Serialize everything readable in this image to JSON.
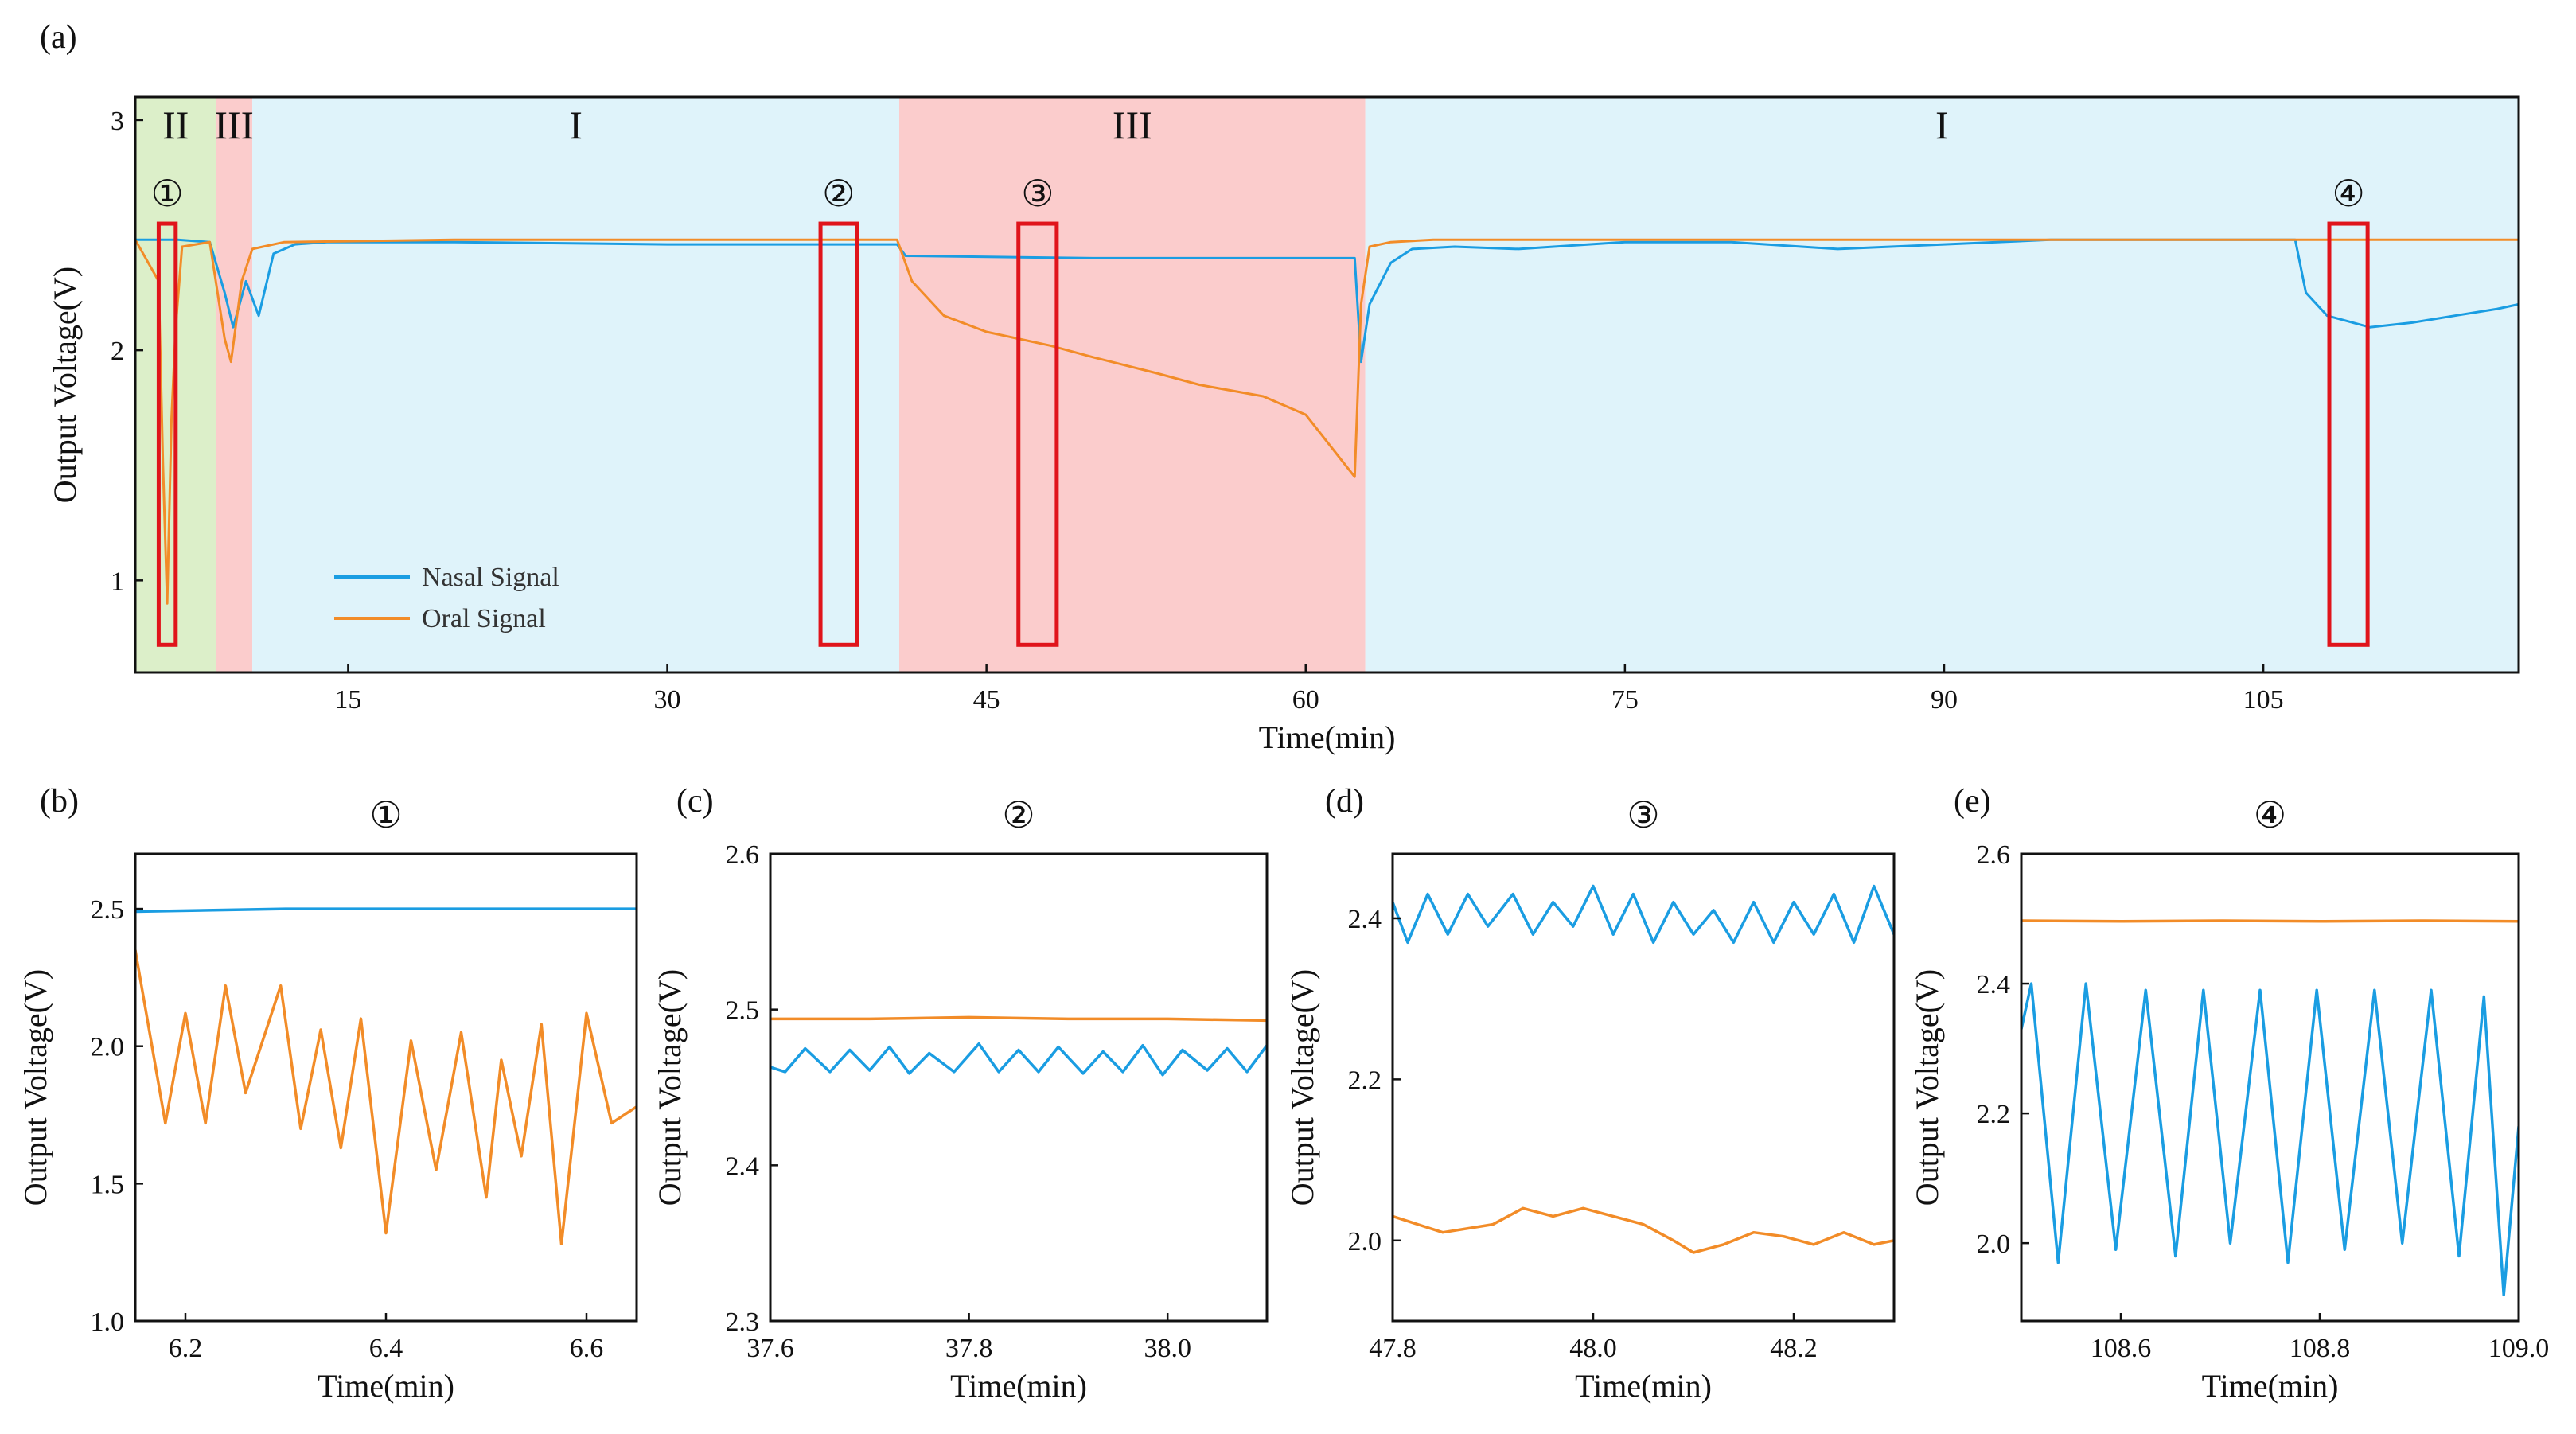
{
  "colors": {
    "nasal": "#1a9de2",
    "nasal_dark": "#4a66c9",
    "oral": "#f28c28",
    "oral_dark": "#f26b1d",
    "zone_I": "#dff3fa",
    "zone_II": "#dcefc9",
    "zone_III": "#fbcccc",
    "marker_box": "#e0141b"
  },
  "chart_data": [
    {
      "panel": "(a)",
      "type": "line",
      "xlabel": "Time(min)",
      "ylabel": "Output Voltage(V)",
      "xlim": [
        5,
        117
      ],
      "ylim": [
        0.6,
        3.1
      ],
      "xticks": [
        15,
        30,
        45,
        60,
        75,
        90,
        105
      ],
      "yticks": [
        1,
        2,
        3
      ],
      "zones": [
        {
          "label": "II",
          "start": 5,
          "end": 8.8,
          "kind": "II"
        },
        {
          "label": "III",
          "start": 8.8,
          "end": 10.5,
          "kind": "III"
        },
        {
          "label": "I",
          "start": 10.5,
          "end": 40.9,
          "kind": "I"
        },
        {
          "label": "III",
          "start": 40.9,
          "end": 62.8,
          "kind": "III"
        },
        {
          "label": "I",
          "start": 62.8,
          "end": 117,
          "kind": "I"
        }
      ],
      "markers": [
        {
          "label": "①",
          "start": 6.1,
          "end": 6.9,
          "ymin": 0.72,
          "ymax": 2.55
        },
        {
          "label": "②",
          "start": 37.2,
          "end": 38.9,
          "ymin": 0.72,
          "ymax": 2.55
        },
        {
          "label": "③",
          "start": 46.5,
          "end": 48.3,
          "ymin": 0.72,
          "ymax": 2.55
        },
        {
          "label": "④",
          "start": 108.1,
          "end": 109.9,
          "ymin": 0.72,
          "ymax": 2.55
        }
      ],
      "legend": {
        "position": "bottom-left",
        "entries": [
          "Nasal Signal",
          "Oral Signal"
        ]
      },
      "series": [
        {
          "name": "Nasal Signal",
          "x": [
            5,
            7,
            8.5,
            9.2,
            9.6,
            10.2,
            10.8,
            11.5,
            12.5,
            14,
            20,
            30,
            40.8,
            41.2,
            50,
            62.3,
            62.6,
            63,
            64,
            65,
            67,
            70,
            75,
            80,
            85,
            90,
            95,
            100,
            106.5,
            107,
            108,
            110,
            112,
            114,
            116,
            117
          ],
          "y": [
            2.48,
            2.48,
            2.47,
            2.25,
            2.1,
            2.3,
            2.15,
            2.42,
            2.46,
            2.47,
            2.47,
            2.46,
            2.46,
            2.41,
            2.4,
            2.4,
            1.95,
            2.2,
            2.38,
            2.44,
            2.45,
            2.44,
            2.47,
            2.47,
            2.44,
            2.46,
            2.48,
            2.48,
            2.48,
            2.25,
            2.15,
            2.1,
            2.12,
            2.15,
            2.18,
            2.2
          ]
        },
        {
          "name": "Oral Signal",
          "x": [
            5,
            6.1,
            6.3,
            6.5,
            6.7,
            6.9,
            7.2,
            8.5,
            9.2,
            9.5,
            10,
            10.5,
            12,
            20,
            30,
            40.8,
            41.5,
            43,
            45,
            48,
            50,
            53,
            55,
            58,
            60,
            62.3,
            62.6,
            63,
            64,
            66,
            75,
            90,
            105,
            117
          ],
          "y": [
            2.48,
            2.3,
            1.5,
            0.9,
            1.7,
            2.1,
            2.45,
            2.47,
            2.05,
            1.95,
            2.3,
            2.44,
            2.47,
            2.48,
            2.48,
            2.48,
            2.3,
            2.15,
            2.08,
            2.02,
            1.97,
            1.9,
            1.85,
            1.8,
            1.72,
            1.45,
            2.2,
            2.45,
            2.47,
            2.48,
            2.48,
            2.48,
            2.48,
            2.48
          ]
        }
      ]
    },
    {
      "panel": "(b)",
      "marker": "①",
      "type": "line",
      "xlabel": "Time(min)",
      "ylabel": "Output Voltage(V)",
      "xlim": [
        6.15,
        6.65
      ],
      "ylim": [
        1.0,
        2.7
      ],
      "xticks": [
        6.2,
        6.4,
        6.6
      ],
      "yticks": [
        1.0,
        1.5,
        2.0,
        2.5
      ],
      "ytick_decimals": 1,
      "series": [
        {
          "name": "Nasal Signal",
          "x": [
            6.15,
            6.3,
            6.45,
            6.65
          ],
          "y": [
            2.49,
            2.5,
            2.5,
            2.5
          ]
        },
        {
          "name": "Oral Signal",
          "x": [
            6.15,
            6.18,
            6.2,
            6.22,
            6.24,
            6.26,
            6.295,
            6.315,
            6.335,
            6.355,
            6.375,
            6.4,
            6.425,
            6.45,
            6.475,
            6.5,
            6.515,
            6.535,
            6.555,
            6.575,
            6.6,
            6.625,
            6.65
          ],
          "y": [
            2.35,
            1.72,
            2.12,
            1.72,
            2.22,
            1.83,
            2.22,
            1.7,
            2.06,
            1.63,
            2.1,
            1.32,
            2.02,
            1.55,
            2.05,
            1.45,
            1.95,
            1.6,
            2.08,
            1.28,
            2.12,
            1.72,
            1.78
          ]
        }
      ]
    },
    {
      "panel": "(c)",
      "marker": "②",
      "type": "line",
      "xlabel": "Time(min)",
      "ylabel": "Output Voltage(V)",
      "xlim": [
        37.6,
        38.1
      ],
      "ylim": [
        2.3,
        2.6
      ],
      "xticks": [
        37.6,
        37.8,
        38.0
      ],
      "yticks": [
        2.3,
        2.4,
        2.5,
        2.6
      ],
      "ytick_decimals": 1,
      "series": [
        {
          "name": "Oral Signal",
          "x": [
            37.6,
            37.7,
            37.8,
            37.9,
            38.0,
            38.1
          ],
          "y": [
            2.494,
            2.494,
            2.495,
            2.494,
            2.494,
            2.493
          ]
        },
        {
          "name": "Nasal Signal",
          "x": [
            37.6,
            37.615,
            37.635,
            37.66,
            37.68,
            37.7,
            37.72,
            37.74,
            37.76,
            37.785,
            37.81,
            37.83,
            37.85,
            37.87,
            37.89,
            37.915,
            37.935,
            37.955,
            37.975,
            37.995,
            38.015,
            38.04,
            38.06,
            38.08,
            38.1
          ],
          "y": [
            2.463,
            2.46,
            2.475,
            2.46,
            2.474,
            2.461,
            2.476,
            2.459,
            2.472,
            2.46,
            2.478,
            2.46,
            2.474,
            2.46,
            2.476,
            2.459,
            2.473,
            2.46,
            2.477,
            2.458,
            2.474,
            2.461,
            2.475,
            2.46,
            2.477
          ]
        }
      ]
    },
    {
      "panel": "(d)",
      "marker": "③",
      "type": "line",
      "xlabel": "Time(min)",
      "ylabel": "Output Voltage(V)",
      "xlim": [
        47.8,
        48.3
      ],
      "ylim": [
        1.9,
        2.48
      ],
      "xticks": [
        47.8,
        48.0,
        48.2
      ],
      "yticks": [
        2.0,
        2.2,
        2.4
      ],
      "ytick_decimals": 1,
      "series": [
        {
          "name": "Nasal Signal",
          "x": [
            47.8,
            47.815,
            47.835,
            47.855,
            47.875,
            47.895,
            47.92,
            47.94,
            47.96,
            47.98,
            48.0,
            48.02,
            48.04,
            48.06,
            48.08,
            48.1,
            48.12,
            48.14,
            48.16,
            48.18,
            48.2,
            48.22,
            48.24,
            48.26,
            48.28,
            48.3
          ],
          "y": [
            2.42,
            2.37,
            2.43,
            2.38,
            2.43,
            2.39,
            2.43,
            2.38,
            2.42,
            2.39,
            2.44,
            2.38,
            2.43,
            2.37,
            2.42,
            2.38,
            2.41,
            2.37,
            2.42,
            2.37,
            2.42,
            2.38,
            2.43,
            2.37,
            2.44,
            2.38
          ]
        },
        {
          "name": "Oral Signal",
          "x": [
            47.8,
            47.85,
            47.9,
            47.93,
            47.96,
            47.99,
            48.02,
            48.05,
            48.08,
            48.1,
            48.13,
            48.16,
            48.19,
            48.22,
            48.25,
            48.28,
            48.3
          ],
          "y": [
            2.03,
            2.01,
            2.02,
            2.04,
            2.03,
            2.04,
            2.03,
            2.02,
            2.0,
            1.985,
            1.995,
            2.01,
            2.005,
            1.995,
            2.01,
            1.995,
            2.0
          ]
        }
      ]
    },
    {
      "panel": "(e)",
      "marker": "④",
      "type": "line",
      "xlabel": "Time(min)",
      "ylabel": "Output Voltage(V)",
      "xlim": [
        108.5,
        109.0
      ],
      "ylim": [
        1.88,
        2.6
      ],
      "xticks": [
        108.6,
        108.8,
        109.0
      ],
      "yticks": [
        2.0,
        2.2,
        2.4,
        2.6
      ],
      "ytick_decimals": 1,
      "series": [
        {
          "name": "Oral Signal",
          "x": [
            108.5,
            108.6,
            108.7,
            108.8,
            108.9,
            109.0
          ],
          "y": [
            2.497,
            2.496,
            2.497,
            2.496,
            2.497,
            2.496
          ]
        },
        {
          "name": "Nasal Signal",
          "x": [
            108.5,
            108.51,
            108.537,
            108.565,
            108.595,
            108.625,
            108.655,
            108.683,
            108.71,
            108.74,
            108.768,
            108.797,
            108.825,
            108.855,
            108.883,
            108.912,
            108.94,
            108.965,
            108.985,
            109.0
          ],
          "y": [
            2.33,
            2.4,
            1.97,
            2.4,
            1.99,
            2.39,
            1.98,
            2.39,
            2.0,
            2.39,
            1.97,
            2.39,
            1.99,
            2.39,
            2.0,
            2.39,
            1.98,
            2.38,
            1.92,
            2.18
          ]
        }
      ]
    }
  ]
}
